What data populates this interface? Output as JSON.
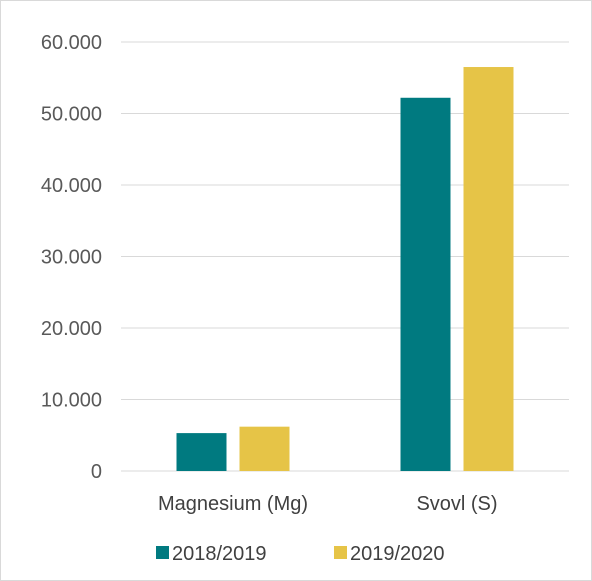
{
  "chart_data": {
    "type": "bar",
    "categories": [
      "Magnesium (Mg)",
      "Svovl (S)"
    ],
    "series": [
      {
        "name": "2018/2019",
        "color": "#007a80",
        "values": [
          5300,
          52200
        ]
      },
      {
        "name": "2019/2020",
        "color": "#e6c447",
        "values": [
          6200,
          56500
        ]
      }
    ],
    "ylim": [
      0,
      60000
    ],
    "yticks": [
      0,
      10000,
      20000,
      30000,
      40000,
      50000,
      60000
    ],
    "ytick_labels": [
      "0",
      "10.000",
      "20.000",
      "30.000",
      "40.000",
      "50.000",
      "60.000"
    ],
    "grid": true,
    "legend_position": "bottom",
    "gridline_color": "#d9d9d9"
  }
}
